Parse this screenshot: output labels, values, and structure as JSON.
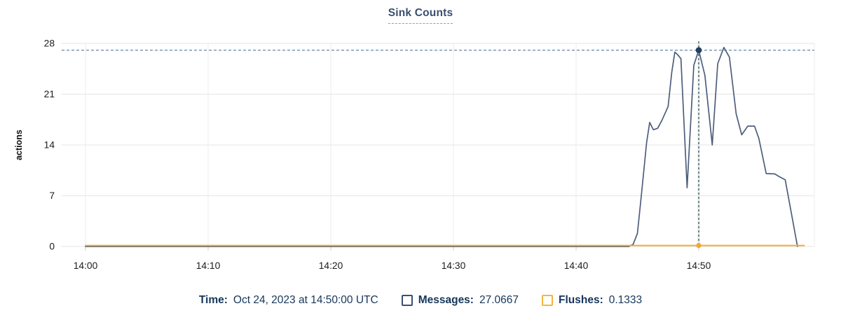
{
  "chart_data": {
    "type": "line",
    "title": "Sink Counts",
    "ylabel": "actions",
    "ylim": [
      0,
      28
    ],
    "y_ticks": [
      0,
      7,
      14,
      21,
      28
    ],
    "x_tick_labels": [
      "14:00",
      "14:10",
      "14:20",
      "14:30",
      "14:40",
      "14:50"
    ],
    "x_tick_minutes": [
      0,
      10,
      20,
      30,
      40,
      50
    ],
    "x_domain_minutes": [
      0,
      58.6
    ],
    "grid": true,
    "legend_position": "bottom",
    "grid_color": "#e9e9e9",
    "minor_grid_color": "#f2f2f2",
    "hover_band_color": "#e9e9e9",
    "axis_text_color": "#1c1c1c",
    "title_color": "#3a4e70",
    "series": [
      {
        "name": "Messages",
        "color": "#4e5e7c",
        "points": [
          [
            0,
            0
          ],
          [
            44.3,
            0
          ],
          [
            44.65,
            0.3
          ],
          [
            45,
            1.8
          ],
          [
            45.35,
            7.5
          ],
          [
            45.75,
            14.3
          ],
          [
            46,
            17.1
          ],
          [
            46.3,
            16.1
          ],
          [
            46.65,
            16.3
          ],
          [
            47,
            17.4
          ],
          [
            47.5,
            19.3
          ],
          [
            47.8,
            24
          ],
          [
            48.05,
            26.8
          ],
          [
            48.3,
            26.4
          ],
          [
            48.55,
            25.9
          ],
          [
            49.05,
            8.1
          ],
          [
            49.6,
            25
          ],
          [
            50,
            27.0667
          ],
          [
            50.5,
            23.6
          ],
          [
            51.1,
            14
          ],
          [
            51.55,
            25.2
          ],
          [
            52.05,
            27.45
          ],
          [
            52.5,
            26.1
          ],
          [
            53.05,
            18.3
          ],
          [
            53.5,
            15.4
          ],
          [
            54,
            16.6
          ],
          [
            54.55,
            16.6
          ],
          [
            54.9,
            14.9
          ],
          [
            55.5,
            10.05
          ],
          [
            56.2,
            10
          ],
          [
            56.6,
            9.6
          ],
          [
            57.05,
            9.2
          ],
          [
            58.05,
            0
          ]
        ]
      },
      {
        "name": "Flushes",
        "color": "#f4ad36",
        "points": [
          [
            0,
            0.1333
          ],
          [
            58.6,
            0.1333
          ]
        ]
      }
    ],
    "highlight": {
      "x_minutes": 50,
      "messages_value": 27.0667,
      "flushes_value": 0.1333,
      "h_guide_color": "#557b9e",
      "v_guide_color": "#3d6361",
      "marker_color": "#22405e",
      "flush_marker_color": "#f2a735"
    }
  },
  "tooltip": {
    "time_label": "Time:",
    "time_value": "Oct 24, 2023 at 14:50:00 UTC",
    "text_color": "#16365a",
    "items": [
      {
        "label": "Messages:",
        "value": "27.0667",
        "color": "#3a506e"
      },
      {
        "label": "Flushes:",
        "value": "0.1333",
        "color": "#f7b43c"
      }
    ]
  }
}
